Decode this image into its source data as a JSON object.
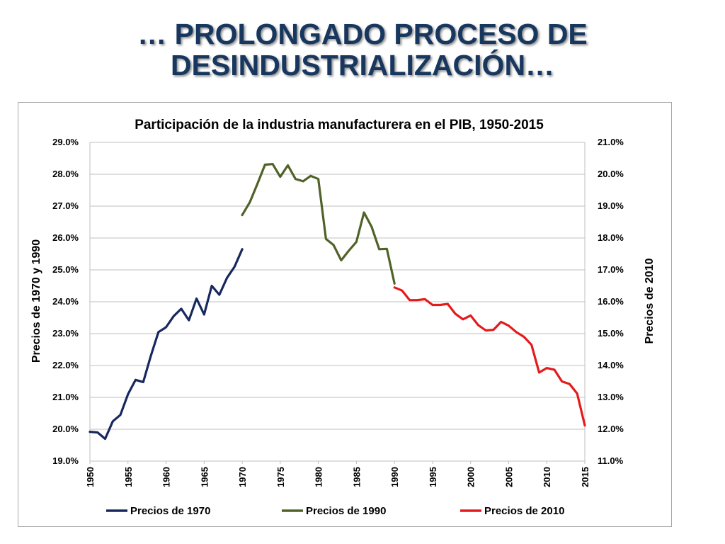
{
  "slide": {
    "title_line1": "… PROLONGADO PROCESO DE",
    "title_line2": "DESINDUSTRIALIZACIÓN…"
  },
  "chart_data": {
    "type": "line",
    "title": "Participación de la industria manufacturera en el PIB, 1950-2015",
    "ylabel_left": "Precios de 1970  y 1990",
    "ylabel_right": "Precios de 2010",
    "xlim": [
      1950,
      2015
    ],
    "x_ticks": [
      1950,
      1955,
      1960,
      1965,
      1970,
      1975,
      1980,
      1985,
      1990,
      1995,
      2000,
      2005,
      2010,
      2015
    ],
    "ylim_left": [
      19.0,
      29.0
    ],
    "ylim_right": [
      11.0,
      21.0
    ],
    "y_ticks_left": [
      "19.0%",
      "20.0%",
      "21.0%",
      "22.0%",
      "23.0%",
      "24.0%",
      "25.0%",
      "26.0%",
      "27.0%",
      "28.0%",
      "29.0%"
    ],
    "y_ticks_right": [
      "11.0%",
      "12.0%",
      "13.0%",
      "14.0%",
      "15.0%",
      "16.0%",
      "17.0%",
      "18.0%",
      "19.0%",
      "20.0%",
      "21.0%"
    ],
    "grid": true,
    "legend_position": "bottom",
    "series": [
      {
        "name": "Precios de 1970",
        "color": "#17285e",
        "axis": "left",
        "x": [
          1950,
          1951,
          1952,
          1953,
          1954,
          1955,
          1956,
          1957,
          1958,
          1959,
          1960,
          1961,
          1962,
          1963,
          1964,
          1965,
          1966,
          1967,
          1968,
          1969,
          1970
        ],
        "y": [
          19.92,
          19.9,
          19.7,
          20.25,
          20.45,
          21.1,
          21.55,
          21.48,
          22.3,
          23.05,
          23.2,
          23.55,
          23.78,
          23.42,
          24.1,
          23.6,
          24.5,
          24.22,
          24.75,
          25.1,
          25.65
        ]
      },
      {
        "name": "Precios de 1990",
        "color": "#4f6228",
        "axis": "left",
        "x": [
          1970,
          1971,
          1972,
          1973,
          1974,
          1975,
          1976,
          1977,
          1978,
          1979,
          1980,
          1981,
          1982,
          1983,
          1984,
          1985,
          1986,
          1987,
          1988,
          1989,
          1990
        ],
        "y": [
          26.72,
          27.12,
          27.7,
          28.3,
          28.32,
          27.92,
          28.28,
          27.85,
          27.78,
          27.95,
          27.85,
          25.97,
          25.78,
          25.3,
          25.6,
          25.88,
          26.8,
          26.35,
          25.65,
          25.66,
          24.57
        ]
      },
      {
        "name": "Precios de 2010",
        "color": "#e41a1c",
        "axis": "right",
        "x": [
          1990,
          1991,
          1992,
          1993,
          1994,
          1995,
          1996,
          1997,
          1998,
          1999,
          2000,
          2001,
          2002,
          2003,
          2004,
          2005,
          2006,
          2007,
          2008,
          2009,
          2010,
          2011,
          2012,
          2013,
          2014,
          2015
        ],
        "y": [
          16.45,
          16.35,
          16.05,
          16.05,
          16.08,
          15.9,
          15.9,
          15.93,
          15.62,
          15.45,
          15.57,
          15.27,
          15.1,
          15.12,
          15.37,
          15.25,
          15.05,
          14.9,
          14.65,
          13.78,
          13.92,
          13.87,
          13.5,
          13.42,
          13.12,
          12.12
        ]
      }
    ]
  }
}
